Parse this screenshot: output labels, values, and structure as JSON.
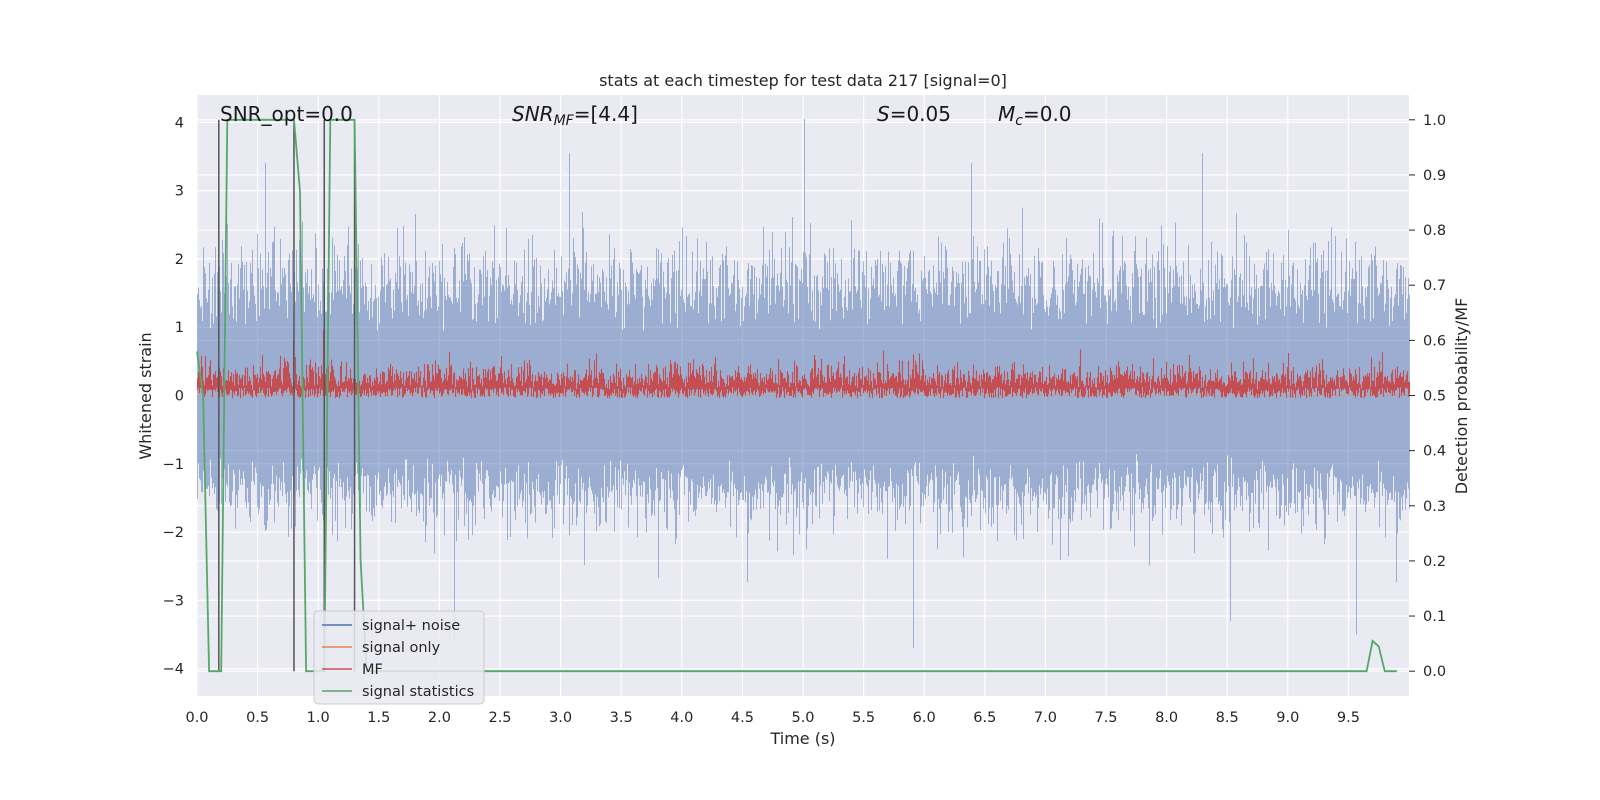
{
  "chart_data": {
    "type": "line",
    "title": "stats at each timestep for test data 217 [signal=0]",
    "xlabel": "Time (s)",
    "ylabel": "Whitened strain",
    "y2label": "Detection probability/MF",
    "xlim": [
      0.0,
      10.0
    ],
    "ylim": [
      -4.4,
      4.4
    ],
    "y2lim": [
      -0.045,
      1.045
    ],
    "grid": true,
    "legend_position": "lower-left",
    "x_ticks": [
      "0.0",
      "0.5",
      "1.0",
      "1.5",
      "2.0",
      "2.5",
      "3.0",
      "3.5",
      "4.0",
      "4.5",
      "5.0",
      "5.5",
      "6.0",
      "6.5",
      "7.0",
      "7.5",
      "8.0",
      "8.5",
      "9.0",
      "9.5"
    ],
    "y_ticks": [
      "−4",
      "−3",
      "−2",
      "−1",
      "0",
      "1",
      "2",
      "3",
      "4"
    ],
    "y2_ticks": [
      "0.0",
      "0.1",
      "0.2",
      "0.3",
      "0.4",
      "0.5",
      "0.6",
      "0.7",
      "0.8",
      "0.9",
      "1.0"
    ],
    "annotations": {
      "snr_opt": "SNR_opt=0.0",
      "snr_mf_main": "SNR",
      "snr_mf_sub": "MF",
      "snr_mf_value": "=[4.4]",
      "s_sym": "S",
      "s_value": "=0.05",
      "mc_main": "M",
      "mc_sub": "c",
      "mc_value": "=0.0"
    },
    "series": [
      {
        "name": "signal+ noise",
        "color": "#4c72b0",
        "axis": "left",
        "sample_rate_hz": 2048,
        "typical_envelope": [
          -1.4,
          1.7
        ],
        "peak_values": [
          {
            "x": 5.01,
            "y": 4.05
          },
          {
            "x": 3.07,
            "y": 3.55
          },
          {
            "x": 8.29,
            "y": 3.55
          },
          {
            "x": 0.56,
            "y": 3.4
          },
          {
            "x": 6.39,
            "y": 3.4
          },
          {
            "x": 5.91,
            "y": -3.7
          },
          {
            "x": 9.56,
            "y": -3.5
          },
          {
            "x": 8.52,
            "y": -3.3
          },
          {
            "x": 2.12,
            "y": -3.6
          }
        ]
      },
      {
        "name": "signal only",
        "color": "#dd8452",
        "axis": "left",
        "values_note": "zero signal"
      },
      {
        "name": "MF",
        "color": "#c44e52",
        "axis": "right",
        "typical_range": [
          0.5,
          0.57
        ],
        "peak_values": [
          {
            "x": 0.79,
            "y": 0.6
          },
          {
            "x": 1.04,
            "y": 0.62
          }
        ]
      },
      {
        "name": "signal statistics",
        "color": "#55a868",
        "axis": "right",
        "x": [
          0.0,
          0.05,
          0.1,
          0.15,
          0.2,
          0.25,
          0.3,
          0.35,
          0.4,
          0.45,
          0.5,
          0.55,
          0.6,
          0.65,
          0.7,
          0.75,
          0.8,
          0.85,
          0.9,
          0.95,
          1.0,
          1.05,
          1.1,
          1.15,
          1.2,
          1.25,
          1.3,
          1.35,
          1.4,
          1.45,
          1.5,
          2.0,
          2.5,
          3.0,
          3.5,
          4.0,
          4.5,
          5.0,
          5.5,
          6.0,
          6.5,
          7.0,
          7.5,
          8.0,
          8.5,
          9.0,
          9.5,
          9.65,
          9.7,
          9.75,
          9.8,
          9.85,
          9.9
        ],
        "values": [
          0.58,
          0.5,
          0.0,
          0.0,
          0.0,
          1.0,
          1.0,
          1.0,
          1.0,
          1.0,
          1.0,
          1.0,
          1.0,
          1.0,
          1.0,
          1.0,
          1.0,
          0.87,
          0.0,
          0.0,
          0.0,
          0.0,
          1.0,
          1.0,
          1.0,
          1.0,
          1.0,
          0.2,
          0.0,
          0.0,
          0.0,
          0.0,
          0.0,
          0.0,
          0.0,
          0.0,
          0.0,
          0.0,
          0.0,
          0.0,
          0.0,
          0.0,
          0.0,
          0.0,
          0.0,
          0.0,
          0.0,
          0.0,
          0.055,
          0.045,
          0.0,
          0.0,
          0.0
        ]
      }
    ],
    "vertical_lines": {
      "color": "#555555",
      "x": [
        0.18,
        0.8,
        1.05,
        1.3
      ]
    }
  }
}
